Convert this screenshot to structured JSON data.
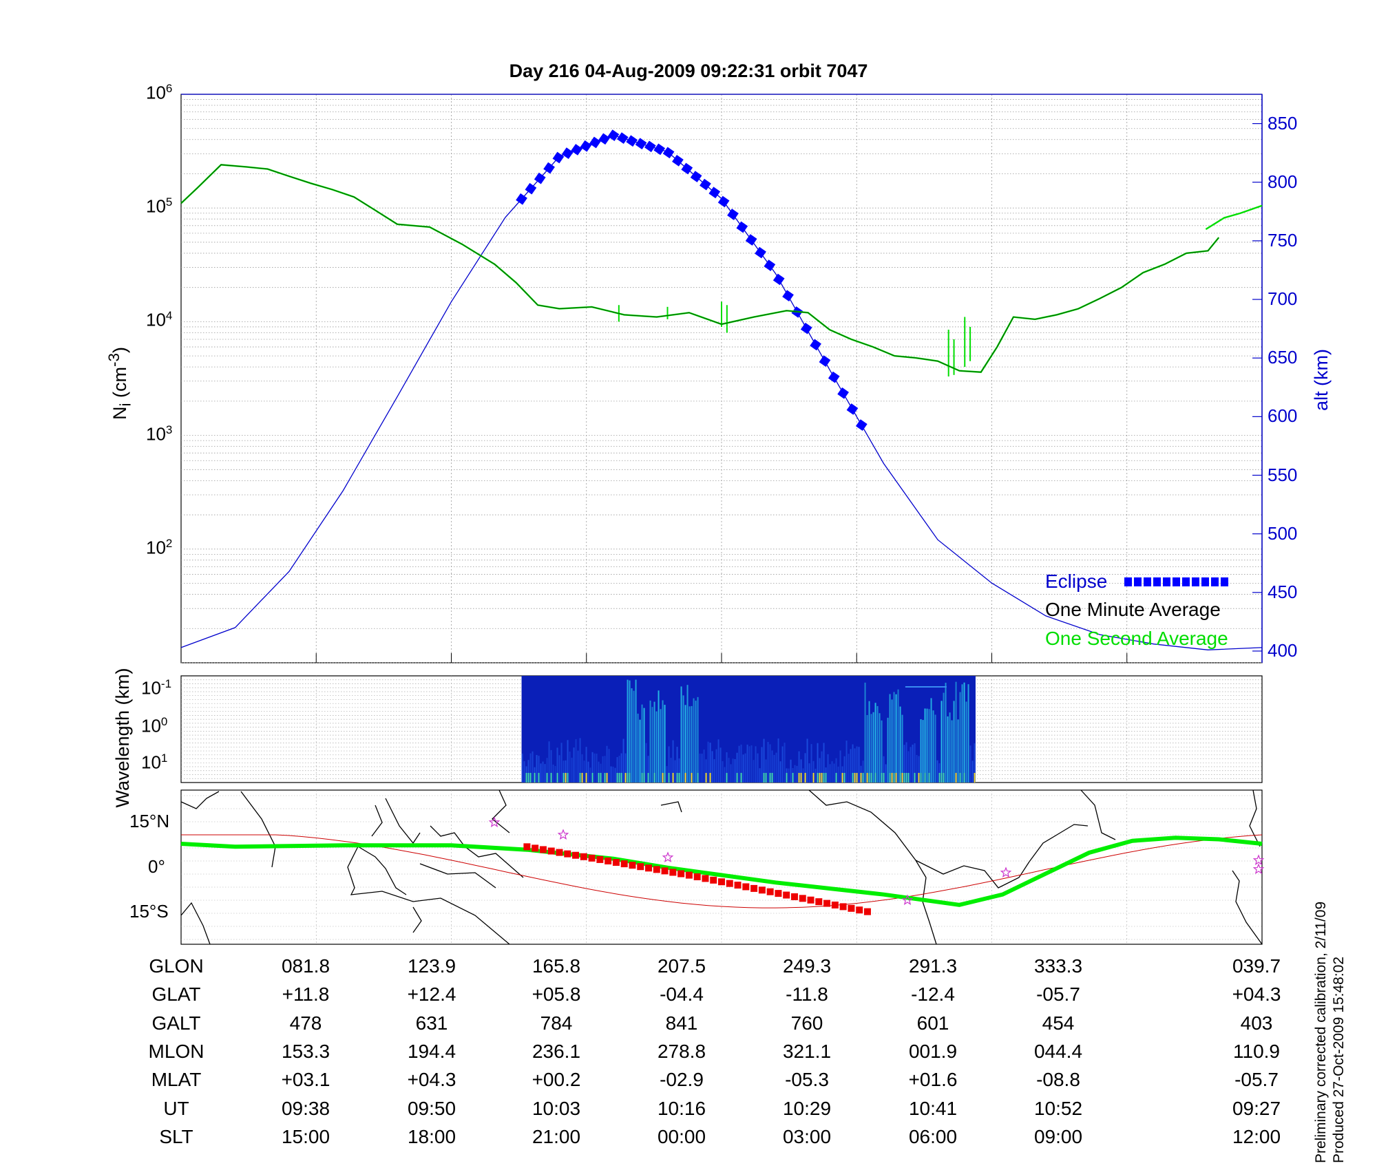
{
  "title": "Day 216  04-Aug-2009 09:22:31   orbit 7047",
  "top_panel": {
    "ylabel_left_base": "N",
    "ylabel_left_sub": "i",
    "ylabel_left_unit_pre": " (cm",
    "ylabel_left_unit_sup": "-3",
    "ylabel_left_unit_post": ")",
    "ylabel_right": "alt (km)",
    "left_ticks": [
      {
        "base": "10",
        "exp": "6"
      },
      {
        "base": "10",
        "exp": "5"
      },
      {
        "base": "10",
        "exp": "4"
      },
      {
        "base": "10",
        "exp": "3"
      },
      {
        "base": "10",
        "exp": "2"
      }
    ],
    "right_ticks": [
      "850",
      "800",
      "750",
      "700",
      "650",
      "600",
      "550",
      "500",
      "450",
      "400"
    ],
    "legend": {
      "eclipse": "Eclipse",
      "minute": "One Minute Average",
      "second": "One Second Average"
    }
  },
  "middle_panel": {
    "ylabel": "Wavelength (km)",
    "ticks": [
      {
        "base": "10",
        "exp": "-1"
      },
      {
        "base": "10",
        "exp": "0"
      },
      {
        "base": "10",
        "exp": "1"
      }
    ]
  },
  "map_panel": {
    "ticks": [
      "15°N",
      "0°",
      "15°S"
    ]
  },
  "table": {
    "row_labels": [
      "GLON",
      "GLAT",
      "GALT",
      "MLON",
      "MLAT",
      "UT",
      "SLT"
    ],
    "rows": [
      [
        "081.8",
        "123.9",
        "165.8",
        "207.5",
        "249.3",
        "291.3",
        "333.3",
        "039.7"
      ],
      [
        "+11.8",
        "+12.4",
        "+05.8",
        "-04.4",
        "-11.8",
        "-12.4",
        "-05.7",
        "+04.3"
      ],
      [
        "478",
        "631",
        "784",
        "841",
        "760",
        "601",
        "454",
        "403"
      ],
      [
        "153.3",
        "194.4",
        "236.1",
        "278.8",
        "321.1",
        "001.9",
        "044.4",
        "110.9"
      ],
      [
        "+03.1",
        "+04.3",
        "+00.2",
        "-02.9",
        "-05.3",
        "+01.6",
        "-08.8",
        "-05.7"
      ],
      [
        "09:38",
        "09:50",
        "10:03",
        "10:16",
        "10:29",
        "10:41",
        "10:52",
        "09:27"
      ],
      [
        "15:00",
        "18:00",
        "21:00",
        "00:00",
        "03:00",
        "06:00",
        "09:00",
        "12:00"
      ]
    ]
  },
  "side_note": {
    "line1": "Preliminary corrected calibration, 2/11/09",
    "line2": "Produced 27-Oct-2009 15:48:02"
  },
  "colors": {
    "altitude": "#0000cc",
    "eclipse": "#0000ff",
    "minute_avg": "#000000",
    "second_avg": "#00dd00",
    "map_track": "#00ee00",
    "map_eclipse": "#ee0000",
    "map_ref": "#cc0000",
    "star": "#cc33cc"
  },
  "chart_data": [
    {
      "type": "line",
      "title": "Day 216  04-Aug-2009 09:22:31   orbit 7047",
      "xlabel": "",
      "ylabel": "Ni (cm-3)",
      "y2label": "alt (km)",
      "ylim": [
        10,
        1000000
      ],
      "yscale": "log",
      "y2lim": [
        390,
        875
      ],
      "grid": true,
      "legend_position": "bottom-right",
      "x_ticks_ut": [
        "09:38",
        "09:50",
        "10:03",
        "10:16",
        "10:29",
        "10:41",
        "10:52",
        "09:27"
      ],
      "series": [
        {
          "name": "One Minute Average",
          "axis": "left",
          "x": [
            0.0,
            0.015,
            0.037,
            0.06,
            0.08,
            0.1,
            0.12,
            0.14,
            0.16,
            0.18,
            0.2,
            0.23,
            0.26,
            0.29,
            0.31,
            0.33,
            0.35,
            0.38,
            0.41,
            0.44,
            0.47,
            0.5,
            0.53,
            0.56,
            0.58,
            0.6,
            0.62,
            0.64,
            0.66,
            0.68,
            0.7,
            0.72,
            0.74,
            0.755,
            0.77,
            0.79,
            0.81,
            0.83,
            0.85,
            0.87,
            0.89,
            0.91,
            0.93,
            0.95,
            0.96
          ],
          "values": [
            110000,
            150000,
            240000,
            230000,
            220000,
            190000,
            165000,
            145000,
            125000,
            95000,
            72000,
            68000,
            48000,
            32000,
            22000,
            14000,
            13000,
            13500,
            11500,
            11000,
            12000,
            9500,
            11000,
            12500,
            12000,
            8500,
            7000,
            6000,
            5000,
            4800,
            4500,
            3700,
            3600,
            6000,
            11000,
            10500,
            11500,
            13000,
            16000,
            20000,
            27000,
            32000,
            40000,
            42000,
            55000
          ]
        },
        {
          "name": "One Second Average",
          "axis": "left",
          "x": [
            0.0,
            0.015,
            0.037,
            0.06,
            0.08,
            0.1,
            0.12,
            0.14,
            0.16,
            0.18,
            0.2,
            0.23,
            0.26,
            0.29,
            0.31,
            0.33,
            0.35,
            0.38,
            0.41,
            0.44,
            0.47,
            0.5,
            0.53,
            0.56,
            0.58,
            0.6,
            0.62,
            0.64,
            0.66,
            0.68,
            0.7,
            0.72,
            0.74,
            0.755,
            0.77,
            0.79,
            0.81,
            0.83,
            0.85,
            0.87,
            0.89,
            0.91,
            0.93,
            0.95,
            0.96
          ],
          "values": [
            110000,
            150000,
            240000,
            230000,
            220000,
            190000,
            165000,
            145000,
            125000,
            95000,
            72000,
            68000,
            48000,
            32000,
            22000,
            14000,
            13000,
            13500,
            11500,
            11000,
            12000,
            9500,
            11000,
            12500,
            12000,
            8500,
            7000,
            6000,
            5000,
            4800,
            4500,
            3700,
            3600,
            6000,
            11000,
            10500,
            11500,
            13000,
            16000,
            20000,
            27000,
            32000,
            40000,
            42000,
            55000
          ]
        },
        {
          "name": "alt (km)",
          "axis": "right",
          "x": [
            0.0,
            0.05,
            0.1,
            0.15,
            0.2,
            0.25,
            0.3,
            0.35,
            0.4,
            0.45,
            0.5,
            0.55,
            0.6,
            0.65,
            0.7,
            0.75,
            0.8,
            0.85,
            0.9,
            0.95,
            1.0
          ],
          "values": [
            403,
            420,
            468,
            537,
            617,
            698,
            770,
            822,
            840,
            826,
            786,
            722,
            640,
            560,
            495,
            458,
            430,
            414,
            406,
            401,
            403
          ]
        }
      ],
      "eclipse_x_range": [
        0.315,
        0.635
      ]
    },
    {
      "type": "heatmap",
      "ylabel": "Wavelength (km)",
      "ylim": [
        0.05,
        30
      ],
      "yscale": "log",
      "data_x_range": [
        0.315,
        0.735
      ]
    }
  ]
}
